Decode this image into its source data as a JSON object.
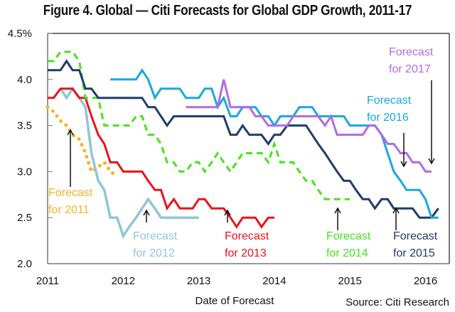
{
  "chart_data": {
    "type": "line",
    "title": "Figure 4. Global — Citi Forecasts for Global GDP Growth, 2011-17",
    "xlabel": "Date of Forecast",
    "ylabel": "",
    "source": "Source: Citi Research",
    "xlim": [
      2011,
      2016.25
    ],
    "ylim": [
      2.0,
      4.5
    ],
    "x_ticks": [
      2011,
      2012,
      2013,
      2014,
      2015,
      2016
    ],
    "x_tick_labels": [
      "2011",
      "2012",
      "2013",
      "2014",
      "2015",
      "2016"
    ],
    "y_ticks": [
      2.0,
      2.5,
      3.0,
      3.5,
      4.0,
      4.5
    ],
    "y_tick_labels": [
      "2.0",
      "2.5",
      "3.0",
      "3.5",
      "4.0",
      "4.5%"
    ],
    "grid": false,
    "series": [
      {
        "name": "Forecast for 2011",
        "label_line1": "Forecast",
        "label_line2": "for 2011",
        "color": "#f5b323",
        "style": "dotted",
        "x": [
          2011.0,
          2011.08,
          2011.17,
          2011.25,
          2011.33,
          2011.42,
          2011.5,
          2011.58,
          2011.67,
          2011.75,
          2011.83,
          2011.92
        ],
        "y": [
          3.7,
          3.65,
          3.55,
          3.5,
          3.4,
          3.35,
          3.2,
          3.0,
          3.05,
          3.1,
          3.0,
          2.95
        ]
      },
      {
        "name": "Forecast for 2012",
        "label_line1": "Forecast",
        "label_line2": "for 2012",
        "color": "#92c5d8",
        "style": "solid",
        "x": [
          2011.17,
          2011.25,
          2011.33,
          2011.42,
          2011.5,
          2011.58,
          2011.67,
          2011.75,
          2011.83,
          2011.92,
          2012.0,
          2012.08,
          2012.17,
          2012.25,
          2012.33,
          2012.42,
          2012.5,
          2012.58,
          2012.67,
          2012.75,
          2012.83,
          2012.92,
          2013.0
        ],
        "y": [
          3.9,
          3.8,
          3.9,
          3.8,
          3.7,
          3.2,
          2.9,
          2.8,
          2.5,
          2.5,
          2.3,
          2.4,
          2.5,
          2.6,
          2.7,
          2.6,
          2.5,
          2.5,
          2.5,
          2.5,
          2.5,
          2.5,
          2.5
        ]
      },
      {
        "name": "Forecast for 2013",
        "label_line1": "Forecast",
        "label_line2": "for 2013",
        "color": "#e8141b",
        "style": "solid",
        "x": [
          2011.0,
          2011.08,
          2011.17,
          2011.25,
          2011.33,
          2011.42,
          2011.5,
          2011.58,
          2011.67,
          2011.75,
          2011.83,
          2011.92,
          2012.0,
          2012.08,
          2012.17,
          2012.25,
          2012.33,
          2012.42,
          2012.5,
          2012.58,
          2012.67,
          2012.75,
          2012.83,
          2012.92,
          2013.0,
          2013.08,
          2013.17,
          2013.25,
          2013.33,
          2013.42,
          2013.5,
          2013.58,
          2013.67,
          2013.75,
          2013.83,
          2013.92,
          2014.0
        ],
        "y": [
          3.8,
          3.8,
          3.9,
          3.9,
          3.9,
          3.8,
          3.8,
          3.6,
          3.4,
          3.3,
          3.1,
          3.1,
          3.0,
          3.0,
          3.0,
          3.0,
          2.9,
          2.8,
          2.8,
          2.6,
          2.7,
          2.6,
          2.6,
          2.6,
          2.7,
          2.7,
          2.6,
          2.6,
          2.6,
          2.5,
          2.4,
          2.5,
          2.5,
          2.5,
          2.4,
          2.5,
          2.5
        ]
      },
      {
        "name": "Forecast for 2014",
        "label_line1": "Forecast",
        "label_line2": "for 2014",
        "color": "#48e21c",
        "style": "dashed",
        "x": [
          2011.0,
          2011.08,
          2011.17,
          2011.25,
          2011.33,
          2011.42,
          2011.5,
          2011.58,
          2011.67,
          2011.75,
          2011.83,
          2011.92,
          2012.0,
          2012.08,
          2012.17,
          2012.25,
          2012.33,
          2012.42,
          2012.5,
          2012.58,
          2012.67,
          2012.75,
          2012.83,
          2012.92,
          2013.0,
          2013.08,
          2013.17,
          2013.25,
          2013.33,
          2013.42,
          2013.5,
          2013.58,
          2013.67,
          2013.75,
          2013.83,
          2013.92,
          2014.0,
          2014.08,
          2014.17,
          2014.25,
          2014.33,
          2014.42,
          2014.5,
          2014.58,
          2014.67,
          2014.75,
          2014.83,
          2014.92,
          2015.0
        ],
        "y": [
          4.2,
          4.2,
          4.3,
          4.3,
          4.3,
          4.2,
          3.8,
          3.8,
          3.8,
          3.5,
          3.5,
          3.5,
          3.5,
          3.5,
          3.6,
          3.6,
          3.4,
          3.4,
          3.3,
          3.1,
          3.1,
          3.0,
          3.0,
          3.1,
          3.1,
          3.0,
          3.1,
          3.2,
          3.1,
          3.0,
          3.1,
          3.2,
          3.2,
          3.2,
          3.2,
          3.1,
          3.3,
          3.1,
          3.1,
          3.1,
          3.0,
          2.9,
          2.9,
          2.8,
          2.7,
          2.7,
          2.7,
          2.7,
          2.7
        ]
      },
      {
        "name": "Forecast for 2015",
        "label_line1": "Forecast",
        "label_line2": "for 2015",
        "color": "#1f3d6b",
        "style": "solid",
        "x": [
          2011.0,
          2011.08,
          2011.17,
          2011.25,
          2011.33,
          2011.42,
          2011.5,
          2011.58,
          2011.67,
          2011.75,
          2011.83,
          2011.92,
          2012.0,
          2012.08,
          2012.17,
          2012.25,
          2012.33,
          2012.42,
          2012.5,
          2012.58,
          2012.67,
          2012.75,
          2012.83,
          2012.92,
          2013.0,
          2013.08,
          2013.17,
          2013.25,
          2013.33,
          2013.42,
          2013.5,
          2013.58,
          2013.67,
          2013.75,
          2013.83,
          2013.92,
          2014.0,
          2014.08,
          2014.17,
          2014.25,
          2014.33,
          2014.42,
          2014.5,
          2014.58,
          2014.67,
          2014.75,
          2014.83,
          2014.92,
          2015.0,
          2015.08,
          2015.17,
          2015.25,
          2015.33,
          2015.42,
          2015.5,
          2015.58,
          2015.67,
          2015.75,
          2015.83,
          2015.92,
          2016.0,
          2016.08,
          2016.17
        ],
        "y": [
          4.1,
          4.1,
          4.1,
          4.2,
          4.1,
          4.1,
          3.9,
          3.9,
          3.8,
          3.8,
          3.8,
          3.8,
          3.8,
          3.8,
          3.8,
          3.8,
          3.7,
          3.7,
          3.6,
          3.5,
          3.6,
          3.6,
          3.6,
          3.6,
          3.6,
          3.6,
          3.6,
          3.6,
          3.6,
          3.4,
          3.4,
          3.5,
          3.4,
          3.4,
          3.4,
          3.3,
          3.4,
          3.4,
          3.5,
          3.5,
          3.5,
          3.5,
          3.4,
          3.3,
          3.2,
          3.1,
          3.0,
          2.9,
          2.9,
          2.8,
          2.7,
          2.7,
          2.6,
          2.7,
          2.7,
          2.6,
          2.6,
          2.6,
          2.6,
          2.5,
          2.5,
          2.5,
          2.6
        ]
      },
      {
        "name": "Forecast for 2016",
        "label_line1": "Forecast",
        "label_line2": "for 2016",
        "color": "#1aa7e0",
        "style": "solid",
        "x": [
          2011.83,
          2011.92,
          2012.0,
          2012.08,
          2012.17,
          2012.25,
          2012.33,
          2012.42,
          2012.5,
          2012.58,
          2012.67,
          2012.75,
          2012.83,
          2012.92,
          2013.0,
          2013.08,
          2013.17,
          2013.25,
          2013.33,
          2013.42,
          2013.5,
          2013.58,
          2013.67,
          2013.75,
          2013.83,
          2013.92,
          2014.0,
          2014.08,
          2014.17,
          2014.25,
          2014.33,
          2014.42,
          2014.5,
          2014.58,
          2014.67,
          2014.75,
          2014.83,
          2014.92,
          2015.0,
          2015.08,
          2015.17,
          2015.25,
          2015.33,
          2015.42,
          2015.5,
          2015.58,
          2015.67,
          2015.75,
          2015.83,
          2015.92,
          2016.0,
          2016.08,
          2016.17
        ],
        "y": [
          4.0,
          4.0,
          4.0,
          4.0,
          4.0,
          4.1,
          4.0,
          3.8,
          3.9,
          3.9,
          3.9,
          3.9,
          3.8,
          3.8,
          3.8,
          3.9,
          3.9,
          3.7,
          3.8,
          3.6,
          3.6,
          3.7,
          3.7,
          3.7,
          3.6,
          3.6,
          3.5,
          3.6,
          3.6,
          3.6,
          3.7,
          3.7,
          3.7,
          3.6,
          3.6,
          3.6,
          3.6,
          3.6,
          3.5,
          3.5,
          3.5,
          3.5,
          3.5,
          3.4,
          3.2,
          3.0,
          2.9,
          2.8,
          2.8,
          2.8,
          2.7,
          2.5,
          2.5
        ]
      },
      {
        "name": "Forecast for 2017",
        "label_line1": "Forecast",
        "label_line2": "for 2017",
        "color": "#b36ae2",
        "style": "solid",
        "x": [
          2012.83,
          2012.92,
          2013.0,
          2013.08,
          2013.17,
          2013.25,
          2013.33,
          2013.42,
          2013.5,
          2013.58,
          2013.67,
          2013.75,
          2013.83,
          2013.92,
          2014.0,
          2014.08,
          2014.17,
          2014.25,
          2014.33,
          2014.42,
          2014.5,
          2014.58,
          2014.67,
          2014.75,
          2014.83,
          2014.92,
          2015.0,
          2015.08,
          2015.17,
          2015.25,
          2015.33,
          2015.42,
          2015.5,
          2015.58,
          2015.67,
          2015.75,
          2015.83,
          2015.92,
          2016.0,
          2016.08
        ],
        "y": [
          3.7,
          3.7,
          3.7,
          3.7,
          3.7,
          3.7,
          4.0,
          3.7,
          3.7,
          3.7,
          3.7,
          3.6,
          3.6,
          3.5,
          3.5,
          3.5,
          3.5,
          3.6,
          3.6,
          3.6,
          3.6,
          3.6,
          3.5,
          3.6,
          3.4,
          3.4,
          3.4,
          3.4,
          3.4,
          3.5,
          3.5,
          3.4,
          3.3,
          3.3,
          3.2,
          3.2,
          3.1,
          3.1,
          3.0,
          3.0
        ]
      }
    ]
  }
}
